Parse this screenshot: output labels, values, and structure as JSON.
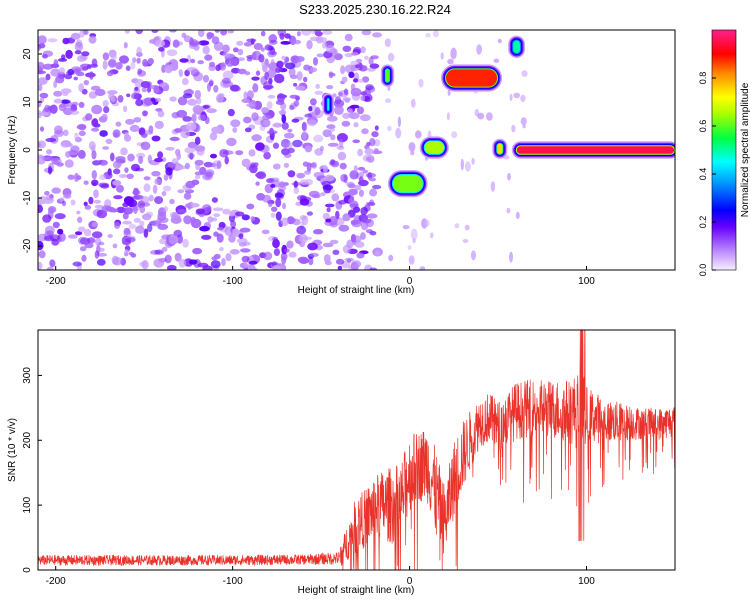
{
  "title": "S233.2025.230.16.22.R24",
  "colors": {
    "snr_line": "#e8322a",
    "axis": "#000000",
    "background": "#ffffff"
  },
  "chart_data": [
    {
      "type": "heatmap",
      "name": "spectrogram",
      "xlabel": "Height of straight line (km)",
      "ylabel": "Frequency (Hz)",
      "xlim": [
        -210,
        150
      ],
      "ylim": [
        -25,
        25
      ],
      "xticks": [
        -200,
        -100,
        0,
        100
      ],
      "yticks": [
        -20,
        -10,
        0,
        10,
        20
      ],
      "noise_region_km": [
        -210,
        -18
      ],
      "features": [
        {
          "label": "blob",
          "x0": -14,
          "x1": -11,
          "y0": 14,
          "y1": 17,
          "peak": 0.6
        },
        {
          "label": "blob",
          "x0": -47,
          "x1": -45,
          "y0": 8,
          "y1": 11,
          "peak": 0.45
        },
        {
          "label": "streak",
          "x0": -10,
          "x1": 8,
          "y0": -9,
          "y1": -5,
          "peak": 0.62
        },
        {
          "label": "streak",
          "x0": 8,
          "x1": 20,
          "y0": -1,
          "y1": 2,
          "peak": 0.65
        },
        {
          "label": "streak",
          "x0": 20,
          "x1": 50,
          "y0": 13,
          "y1": 17,
          "peak": 0.88
        },
        {
          "label": "blob",
          "x0": 49,
          "x1": 53,
          "y0": -1,
          "y1": 1.5,
          "peak": 0.75
        },
        {
          "label": "blob",
          "x0": 58,
          "x1": 63,
          "y0": 20,
          "y1": 23,
          "peak": 0.5
        },
        {
          "label": "line",
          "x0": 60,
          "x1": 150,
          "y0": -1,
          "y1": 1,
          "peak": 0.95
        }
      ],
      "colorbar": {
        "label": "Normalized spectral amplitude",
        "range": [
          0,
          1
        ],
        "ticks": [
          0.0,
          0.2,
          0.4,
          0.6,
          0.8
        ],
        "tick_labels": [
          "0.0",
          "0.2",
          "0.4",
          "0.6",
          "0.8"
        ],
        "colors": [
          "#f0e8ff",
          "#8800ff",
          "#0000ff",
          "#00ffff",
          "#00ff00",
          "#ffff00",
          "#ff8800",
          "#ff0000",
          "#ff1a8c"
        ]
      }
    },
    {
      "type": "line",
      "name": "snr",
      "xlabel": "Height of straight line (km)",
      "ylabel": "SNR (10 * v/v)",
      "xlim": [
        -210,
        150
      ],
      "ylim": [
        0,
        370
      ],
      "xticks": [
        -200,
        -100,
        0,
        100
      ],
      "yticks": [
        0,
        100,
        200,
        300
      ],
      "series": [
        {
          "name": "SNR",
          "x": [
            -210,
            -150,
            -100,
            -60,
            -40,
            -38,
            -35,
            -30,
            -25,
            -20,
            -15,
            -10,
            -5,
            0,
            5,
            10,
            15,
            20,
            25,
            30,
            35,
            40,
            45,
            50,
            60,
            70,
            80,
            90,
            95,
            98,
            100,
            110,
            120,
            130,
            140,
            150
          ],
          "mean": [
            15,
            15,
            15,
            16,
            18,
            25,
            45,
            70,
            80,
            95,
            100,
            100,
            105,
            150,
            160,
            165,
            115,
            75,
            140,
            175,
            205,
            230,
            235,
            220,
            245,
            250,
            248,
            245,
            245,
            250,
            240,
            230,
            228,
            226,
            225,
            230
          ],
          "spread": [
            8,
            8,
            8,
            8,
            10,
            20,
            30,
            45,
            45,
            50,
            55,
            60,
            60,
            60,
            55,
            60,
            70,
            55,
            60,
            55,
            45,
            40,
            40,
            40,
            45,
            45,
            45,
            50,
            60,
            60,
            45,
            35,
            30,
            25,
            25,
            25
          ],
          "max": 370,
          "min": 0
        }
      ]
    }
  ]
}
